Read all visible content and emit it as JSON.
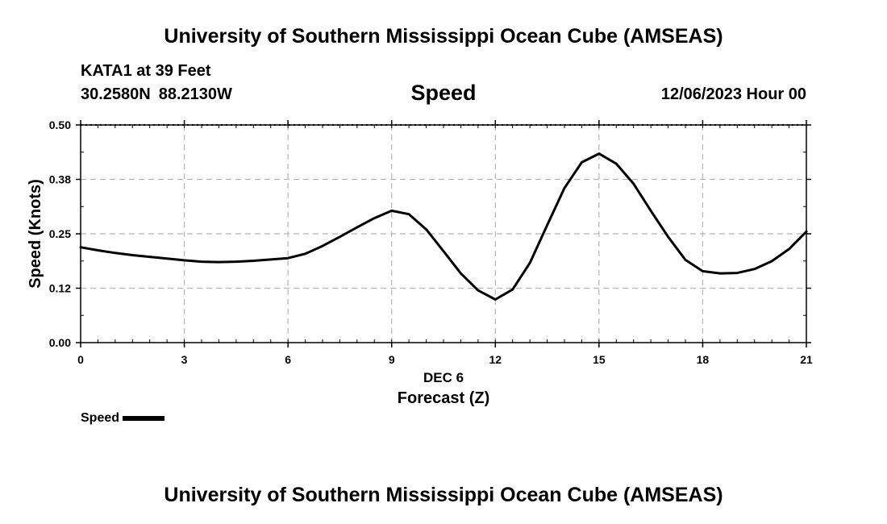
{
  "header": {
    "title": "University of Southern Mississippi Ocean Cube (AMSEAS)",
    "station": "KATA1 at 39 Feet",
    "latitude": "30.2580N",
    "longitude": "88.2130W",
    "variable": "Speed",
    "datetime": "12/06/2023 Hour 00"
  },
  "footer": {
    "title": "University of Southern Mississippi Ocean Cube (AMSEAS)"
  },
  "chart_data": {
    "type": "line",
    "ylabel": "Speed (Knots)",
    "xlabel": "Forecast (Z)",
    "x_sublabel": "DEC 6",
    "xlim": [
      0,
      21
    ],
    "ylim": [
      0,
      0.5
    ],
    "x_ticks": [
      0,
      3,
      6,
      9,
      12,
      15,
      18,
      21
    ],
    "x_tick_labels": [
      "0",
      "3",
      "6",
      "9",
      "12",
      "15",
      "18",
      "21"
    ],
    "y_ticks": [
      0,
      0.125,
      0.25,
      0.375,
      0.5
    ],
    "y_tick_labels": [
      "0.00",
      "0.12",
      "0.25",
      "0.38",
      "0.50"
    ],
    "grid": true,
    "line_color": "#000000",
    "legend_position": "bottom-left",
    "series": [
      {
        "name": "Speed",
        "x": [
          0,
          0.5,
          1,
          1.5,
          2,
          2.5,
          3,
          3.5,
          4,
          4.5,
          5,
          5.5,
          6,
          6.5,
          7,
          7.5,
          8,
          8.5,
          9,
          9.5,
          10,
          10.5,
          11,
          11.5,
          12,
          12.5,
          13,
          13.5,
          14,
          14.5,
          15,
          15.5,
          16,
          16.5,
          17,
          17.5,
          18,
          18.5,
          19,
          19.5,
          20,
          20.5,
          21
        ],
        "y": [
          0.219,
          0.212,
          0.206,
          0.201,
          0.197,
          0.193,
          0.189,
          0.186,
          0.185,
          0.186,
          0.188,
          0.191,
          0.194,
          0.204,
          0.222,
          0.243,
          0.265,
          0.286,
          0.303,
          0.295,
          0.26,
          0.21,
          0.159,
          0.12,
          0.099,
          0.122,
          0.183,
          0.27,
          0.355,
          0.414,
          0.434,
          0.411,
          0.365,
          0.303,
          0.243,
          0.19,
          0.164,
          0.159,
          0.16,
          0.169,
          0.187,
          0.215,
          0.255
        ]
      }
    ]
  }
}
